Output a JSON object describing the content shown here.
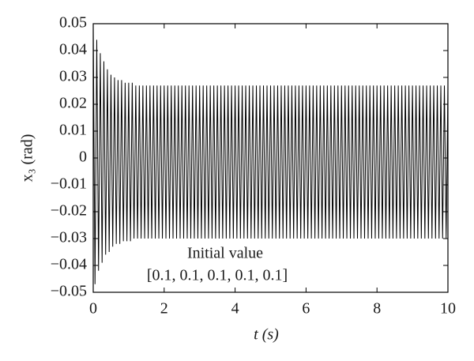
{
  "chart_data": {
    "type": "line",
    "xlabel": "t (s)",
    "ylabel": "x₃ (rad)",
    "annotations": [
      "Initial value",
      "[0.1, 0.1, 0.1, 0.1, 0.1]"
    ],
    "xlim": [
      0,
      10
    ],
    "xticks": [
      0,
      2,
      4,
      6,
      8,
      10
    ],
    "ylim": [
      -0.05,
      0.05
    ],
    "yticks": [
      {
        "value": -0.05,
        "label": "−0.05"
      },
      {
        "value": -0.04,
        "label": "−0.04"
      },
      {
        "value": -0.03,
        "label": "−0.03"
      },
      {
        "value": -0.02,
        "label": "−0.02"
      },
      {
        "value": -0.01,
        "label": "−0.01"
      },
      0,
      0.01,
      0.02,
      0.03,
      0.04,
      0.05
    ],
    "grid": false,
    "series": [
      {
        "color": "#000000",
        "x": [
          0,
          0.05,
          0.1,
          0.15,
          0.2,
          0.25,
          0.3,
          0.35,
          0.4,
          0.45,
          0.5,
          0.55,
          0.6,
          0.65,
          0.7,
          0.75,
          0.8,
          0.85,
          0.9,
          0.95,
          1,
          1.05,
          1.1,
          1.15,
          1.2,
          1.25,
          1.3,
          1.35,
          1.4,
          1.45,
          1.5,
          1.55,
          1.6,
          1.65,
          1.7,
          1.75,
          1.8,
          1.85,
          1.9,
          1.95,
          2,
          2.05,
          2.1,
          2.15,
          2.2,
          2.25,
          2.3,
          2.35,
          2.4,
          2.45,
          2.5,
          2.55,
          2.6,
          2.65,
          2.7,
          2.75,
          2.8,
          2.85,
          2.9,
          2.95,
          3,
          3.05,
          3.1,
          3.15,
          3.2,
          3.25,
          3.3,
          3.35,
          3.4,
          3.45,
          3.5,
          3.55,
          3.6,
          3.65,
          3.7,
          3.75,
          3.8,
          3.85,
          3.9,
          3.95,
          4,
          4.05,
          4.1,
          4.15,
          4.2,
          4.25,
          4.3,
          4.35,
          4.4,
          4.45,
          4.5,
          4.55,
          4.6,
          4.65,
          4.7,
          4.75,
          4.8,
          4.85,
          4.9,
          4.95,
          5,
          5.05,
          5.1,
          5.15,
          5.2,
          5.25,
          5.3,
          5.35,
          5.4,
          5.45,
          5.5,
          5.55,
          5.6,
          5.65,
          5.7,
          5.75,
          5.8,
          5.85,
          5.9,
          5.95,
          6,
          6.05,
          6.1,
          6.15,
          6.2,
          6.25,
          6.3,
          6.35,
          6.4,
          6.45,
          6.5,
          6.55,
          6.6,
          6.65,
          6.7,
          6.75,
          6.8,
          6.85,
          6.9,
          6.95,
          7,
          7.05,
          7.1,
          7.15,
          7.2,
          7.25,
          7.3,
          7.35,
          7.4,
          7.45,
          7.5,
          7.55,
          7.6,
          7.65,
          7.7,
          7.75,
          7.8,
          7.85,
          7.9,
          7.95,
          8,
          8.05,
          8.1,
          8.15,
          8.2,
          8.25,
          8.3,
          8.35,
          8.4,
          8.45,
          8.5,
          8.55,
          8.6,
          8.65,
          8.7,
          8.75,
          8.8,
          8.85,
          8.9,
          8.95,
          9,
          9.05,
          9.1,
          9.15,
          9.2,
          9.25,
          9.3,
          9.35,
          9.4,
          9.45,
          9.5,
          9.55,
          9.6,
          9.65,
          9.7,
          9.75,
          9.8,
          9.85,
          9.9,
          9.95,
          10
        ],
        "values": [
          0.05,
          -0.047,
          0.044,
          -0.042,
          0.039,
          -0.039,
          0.036,
          -0.036,
          0.033,
          -0.035,
          0.031,
          -0.033,
          0.03,
          -0.032,
          0.029,
          -0.032,
          0.029,
          -0.031,
          0.028,
          -0.031,
          0.028,
          -0.031,
          0.028,
          -0.03,
          0.027,
          -0.03,
          0.027,
          -0.03,
          0.027,
          -0.03,
          0.027,
          -0.03,
          0.027,
          -0.03,
          0.027,
          -0.03,
          0.027,
          -0.03,
          0.027,
          -0.03,
          0.027,
          -0.03,
          0.027,
          -0.03,
          0.027,
          -0.03,
          0.027,
          -0.03,
          0.027,
          -0.03,
          0.027,
          -0.03,
          0.027,
          -0.03,
          0.027,
          -0.03,
          0.027,
          -0.03,
          0.027,
          -0.03,
          0.027,
          -0.03,
          0.027,
          -0.03,
          0.027,
          -0.03,
          0.027,
          -0.03,
          0.027,
          -0.03,
          0.027,
          -0.03,
          0.027,
          -0.03,
          0.027,
          -0.03,
          0.027,
          -0.03,
          0.027,
          -0.03,
          0.027,
          -0.03,
          0.027,
          -0.03,
          0.027,
          -0.03,
          0.027,
          -0.03,
          0.027,
          -0.03,
          0.027,
          -0.03,
          0.027,
          -0.03,
          0.027,
          -0.03,
          0.027,
          -0.03,
          0.027,
          -0.03,
          0.027,
          -0.03,
          0.027,
          -0.03,
          0.027,
          -0.03,
          0.027,
          -0.03,
          0.027,
          -0.03,
          0.027,
          -0.03,
          0.027,
          -0.03,
          0.027,
          -0.03,
          0.027,
          -0.03,
          0.027,
          -0.03,
          0.027,
          -0.03,
          0.027,
          -0.03,
          0.027,
          -0.03,
          0.027,
          -0.03,
          0.027,
          -0.03,
          0.027,
          -0.03,
          0.027,
          -0.03,
          0.027,
          -0.03,
          0.027,
          -0.03,
          0.027,
          -0.03,
          0.027,
          -0.03,
          0.027,
          -0.03,
          0.027,
          -0.03,
          0.027,
          -0.03,
          0.027,
          -0.03,
          0.027,
          -0.03,
          0.027,
          -0.03,
          0.027,
          -0.03,
          0.027,
          -0.03,
          0.027,
          -0.03,
          0.027,
          -0.03,
          0.027,
          -0.03,
          0.027,
          -0.03,
          0.027,
          -0.03,
          0.027,
          -0.03,
          0.027,
          -0.03,
          0.027,
          -0.03,
          0.027,
          -0.03,
          0.027,
          -0.03,
          0.027,
          -0.03,
          0.027,
          -0.03,
          0.027,
          -0.03,
          0.027,
          -0.03,
          0.027,
          -0.03,
          0.027,
          -0.03,
          0.027,
          -0.03,
          0.027,
          -0.03,
          0.027,
          -0.03,
          0.027,
          -0.03,
          0.027,
          -0.03,
          0.027
        ]
      }
    ]
  }
}
